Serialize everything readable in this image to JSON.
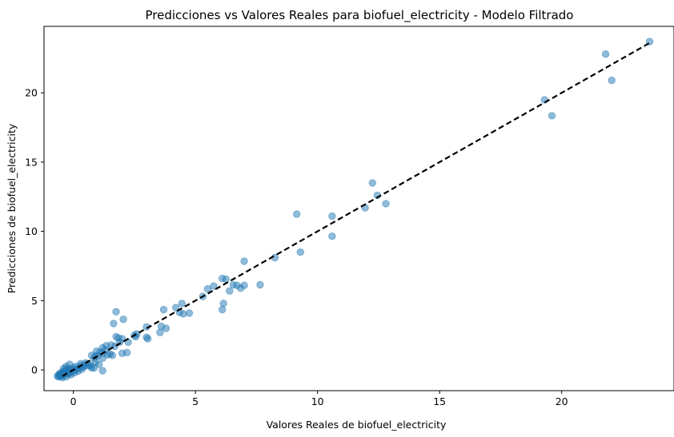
{
  "chart_data": {
    "type": "scatter",
    "title": "Predicciones vs Valores Reales para biofuel_electricity - Modelo Filtrado",
    "xlabel": "Valores Reales de biofuel_electricity",
    "ylabel": "Predicciones de biofuel_electricity",
    "xlim": [
      -1.2,
      24.6
    ],
    "ylim": [
      -1.5,
      24.8
    ],
    "xticks": [
      0,
      5,
      10,
      15,
      20
    ],
    "yticks": [
      0,
      5,
      10,
      15,
      20
    ],
    "grid": false,
    "point_color": "#1f77b4",
    "point_alpha": 0.5,
    "reference_line": {
      "style": "dashed",
      "color": "#000000",
      "from": [
        -0.45,
        -0.45
      ],
      "to": [
        23.6,
        23.6
      ]
    },
    "points": [
      [
        23.6,
        23.7
      ],
      [
        21.8,
        22.8
      ],
      [
        22.05,
        20.9
      ],
      [
        19.3,
        19.5
      ],
      [
        19.6,
        18.35
      ],
      [
        12.25,
        13.5
      ],
      [
        12.45,
        12.6
      ],
      [
        11.95,
        11.7
      ],
      [
        12.8,
        12.0
      ],
      [
        9.15,
        11.25
      ],
      [
        10.6,
        11.1
      ],
      [
        10.6,
        9.65
      ],
      [
        9.3,
        8.5
      ],
      [
        8.25,
        8.1
      ],
      [
        7.0,
        7.85
      ],
      [
        6.7,
        6.1
      ],
      [
        6.55,
        6.15
      ],
      [
        7.0,
        6.1
      ],
      [
        7.65,
        6.15
      ],
      [
        6.85,
        5.9
      ],
      [
        6.4,
        5.7
      ],
      [
        6.1,
        6.6
      ],
      [
        6.25,
        6.55
      ],
      [
        5.75,
        6.05
      ],
      [
        5.5,
        5.85
      ],
      [
        5.3,
        5.3
      ],
      [
        6.15,
        4.8
      ],
      [
        6.1,
        4.35
      ],
      [
        4.45,
        4.8
      ],
      [
        4.2,
        4.5
      ],
      [
        4.5,
        4.05
      ],
      [
        4.35,
        4.15
      ],
      [
        4.75,
        4.1
      ],
      [
        3.7,
        4.35
      ],
      [
        3.6,
        3.15
      ],
      [
        3.55,
        2.7
      ],
      [
        3.8,
        3.0
      ],
      [
        3.0,
        3.1
      ],
      [
        3.0,
        2.35
      ],
      [
        3.05,
        2.25
      ],
      [
        2.6,
        2.6
      ],
      [
        2.55,
        2.4
      ],
      [
        2.25,
        2.0
      ],
      [
        2.2,
        1.25
      ],
      [
        2.0,
        1.2
      ],
      [
        1.75,
        4.2
      ],
      [
        1.65,
        3.35
      ],
      [
        2.05,
        3.65
      ],
      [
        1.75,
        2.4
      ],
      [
        1.85,
        2.3
      ],
      [
        2.0,
        2.25
      ],
      [
        1.9,
        2.0
      ],
      [
        1.55,
        1.8
      ],
      [
        1.35,
        1.75
      ],
      [
        1.2,
        1.6
      ],
      [
        1.3,
        1.45
      ],
      [
        1.1,
        1.3
      ],
      [
        0.95,
        1.35
      ],
      [
        1.5,
        1.15
      ],
      [
        1.2,
        1.2
      ],
      [
        1.0,
        1.0
      ],
      [
        0.75,
        1.05
      ],
      [
        0.85,
        0.85
      ],
      [
        1.2,
        0.85
      ],
      [
        0.9,
        0.55
      ],
      [
        0.7,
        0.3
      ],
      [
        1.05,
        0.4
      ],
      [
        0.75,
        0.15
      ],
      [
        0.85,
        0.15
      ],
      [
        1.2,
        -0.05
      ],
      [
        0.6,
        0.45
      ],
      [
        0.5,
        0.5
      ],
      [
        0.45,
        0.3
      ],
      [
        0.4,
        0.2
      ],
      [
        0.3,
        0.3
      ],
      [
        0.25,
        0.15
      ],
      [
        0.15,
        0.05
      ],
      [
        0.1,
        0.25
      ],
      [
        0.05,
        0.0
      ],
      [
        0.0,
        0.15
      ],
      [
        -0.05,
        -0.1
      ],
      [
        -0.1,
        0.05
      ],
      [
        -0.15,
        0.4
      ],
      [
        -0.15,
        -0.2
      ],
      [
        -0.2,
        0.0
      ],
      [
        -0.25,
        0.1
      ],
      [
        -0.25,
        -0.25
      ],
      [
        -0.3,
        -0.1
      ],
      [
        -0.3,
        0.25
      ],
      [
        -0.35,
        -0.3
      ],
      [
        -0.35,
        -0.05
      ],
      [
        -0.4,
        -0.2
      ],
      [
        -0.4,
        -0.35
      ],
      [
        -0.45,
        -0.15
      ],
      [
        -0.45,
        -0.4
      ],
      [
        -0.5,
        -0.3
      ],
      [
        -0.5,
        -0.45
      ],
      [
        -0.55,
        -0.25
      ],
      [
        -0.55,
        -0.4
      ],
      [
        -0.6,
        -0.35
      ],
      [
        -0.6,
        -0.5
      ],
      [
        -0.65,
        -0.45
      ],
      [
        -0.4,
        0.1
      ],
      [
        -0.2,
        -0.3
      ],
      [
        0.05,
        -0.2
      ],
      [
        0.2,
        -0.1
      ],
      [
        0.35,
        0.05
      ],
      [
        -0.1,
        -0.35
      ],
      [
        -0.3,
        -0.5
      ],
      [
        -0.45,
        -0.55
      ],
      [
        0.6,
        0.3
      ],
      [
        0.9,
        1.0
      ],
      [
        1.4,
        1.1
      ],
      [
        1.6,
        1.05
      ],
      [
        1.7,
        1.7
      ],
      [
        2.5,
        2.5
      ],
      [
        0.3,
        0.45
      ]
    ]
  }
}
